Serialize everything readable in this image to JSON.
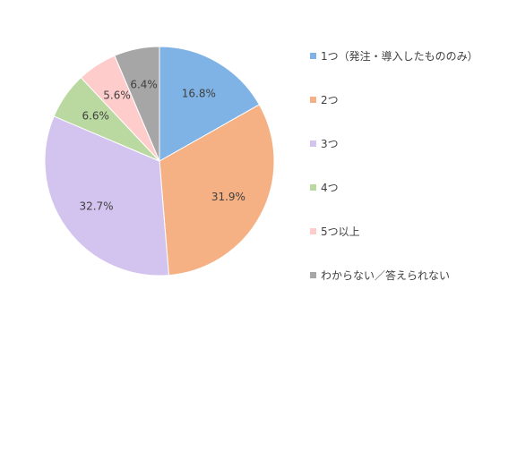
{
  "chart_data": {
    "type": "pie",
    "title": "",
    "start_angle_deg": 0,
    "direction": "clockwise",
    "legend_position": "right",
    "slices": [
      {
        "label": "1つ（発注・導入したもののみ）",
        "value": 16.8,
        "display": "16.8%",
        "color": "#7FB2E5"
      },
      {
        "label": "2つ",
        "value": 31.9,
        "display": "31.9%",
        "color": "#F5B183"
      },
      {
        "label": "3つ",
        "value": 32.7,
        "display": "32.7%",
        "color": "#D3C3EF"
      },
      {
        "label": "4つ",
        "value": 6.6,
        "display": "6.6%",
        "color": "#BAD9A0"
      },
      {
        "label": "5つ以上",
        "value": 5.6,
        "display": "5.6%",
        "color": "#FFCCCC"
      },
      {
        "label": "わからない／答えられない",
        "value": 6.4,
        "display": "6.4%",
        "color": "#A6A6A6"
      }
    ]
  }
}
